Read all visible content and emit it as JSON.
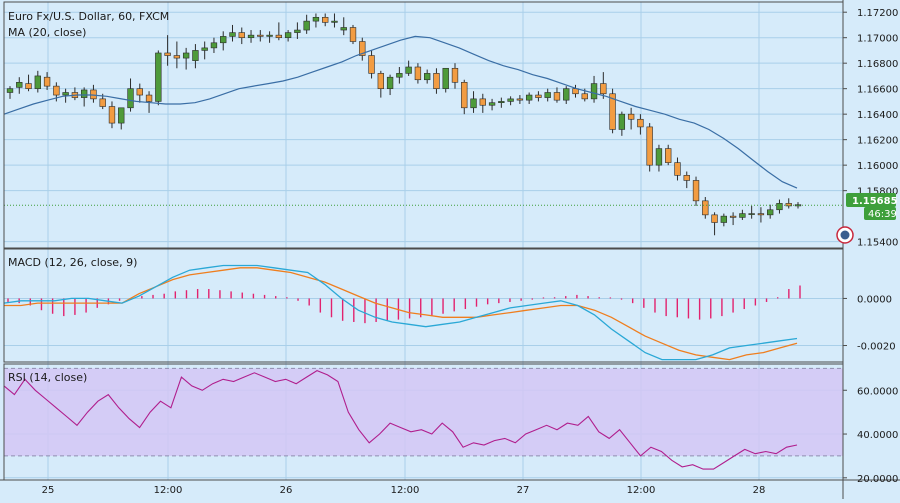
{
  "title": "Euro Fx/U.S. Dollar, 60, FXCM",
  "colors": {
    "background": "#d6ebfa",
    "grid": "#a9cfe9",
    "border": "#4c4c4c",
    "bull": "#4e9a3a",
    "bear": "#f29c42",
    "ma": "#3a6ea5",
    "macd": "#2aa8d6",
    "signal": "#ef7e1e",
    "hist": "#e2226e",
    "rsi": "#b01e8d",
    "rsi_band": "#d4c7f5",
    "last_price_bg": "#3e9f3b",
    "price_line": "#3e9f3b"
  },
  "chart_data": [
    {
      "type": "candlestick",
      "title": "Euro Fx/U.S. Dollar, 60, FXCM",
      "indicator_label": "MA (20, close)",
      "ylim": [
        1.1535,
        1.1728
      ],
      "yticks": [
        "1.17200",
        "1.17000",
        "1.16800",
        "1.16600",
        "1.16400",
        "1.16200",
        "1.16000",
        "1.15800",
        "1.15400"
      ],
      "last_price": "1.15685",
      "countdown": "46:39",
      "x_labels": [
        "25",
        "12:00",
        "26",
        "12:00",
        "27",
        "12:00",
        "28"
      ],
      "candles": [
        [
          1.1657,
          1.1662,
          1.1652,
          1.166
        ],
        [
          1.1661,
          1.1669,
          1.1656,
          1.1665
        ],
        [
          1.1664,
          1.1671,
          1.1658,
          1.166
        ],
        [
          1.166,
          1.1674,
          1.1657,
          1.167
        ],
        [
          1.1669,
          1.1673,
          1.1659,
          1.1662
        ],
        [
          1.1662,
          1.1665,
          1.165,
          1.1655
        ],
        [
          1.1655,
          1.166,
          1.1649,
          1.1657
        ],
        [
          1.1657,
          1.1661,
          1.1651,
          1.1653
        ],
        [
          1.1653,
          1.1661,
          1.1646,
          1.1659
        ],
        [
          1.1659,
          1.1663,
          1.1649,
          1.1652
        ],
        [
          1.1652,
          1.1656,
          1.1644,
          1.1646
        ],
        [
          1.1646,
          1.165,
          1.1629,
          1.1633
        ],
        [
          1.1633,
          1.1645,
          1.1628,
          1.1645
        ],
        [
          1.1645,
          1.1668,
          1.1642,
          1.166
        ],
        [
          1.166,
          1.1664,
          1.1649,
          1.1655
        ],
        [
          1.1655,
          1.1658,
          1.1641,
          1.165
        ],
        [
          1.165,
          1.169,
          1.1647,
          1.1688
        ],
        [
          1.1688,
          1.1702,
          1.1678,
          1.1686
        ],
        [
          1.1686,
          1.1697,
          1.1676,
          1.1684
        ],
        [
          1.1684,
          1.1692,
          1.1675,
          1.1688
        ],
        [
          1.1682,
          1.1695,
          1.1676,
          1.169
        ],
        [
          1.169,
          1.1697,
          1.1683,
          1.1692
        ],
        [
          1.1692,
          1.17,
          1.1688,
          1.1696
        ],
        [
          1.1696,
          1.1705,
          1.169,
          1.1701
        ],
        [
          1.1701,
          1.171,
          1.1697,
          1.1704
        ],
        [
          1.1704,
          1.1708,
          1.1695,
          1.17
        ],
        [
          1.17,
          1.1706,
          1.1696,
          1.1702
        ],
        [
          1.1702,
          1.1706,
          1.1697,
          1.1701
        ],
        [
          1.1701,
          1.1705,
          1.1696,
          1.1702
        ],
        [
          1.1702,
          1.1712,
          1.1698,
          1.17
        ],
        [
          1.17,
          1.1706,
          1.1697,
          1.1704
        ],
        [
          1.1704,
          1.1712,
          1.1699,
          1.1706
        ],
        [
          1.1706,
          1.1718,
          1.1703,
          1.1713
        ],
        [
          1.1713,
          1.1719,
          1.1708,
          1.1716
        ],
        [
          1.1716,
          1.1719,
          1.1709,
          1.1712
        ],
        [
          1.1712,
          1.1719,
          1.1708,
          1.1713
        ],
        [
          1.1706,
          1.1716,
          1.1702,
          1.1708
        ],
        [
          1.1708,
          1.171,
          1.1695,
          1.1697
        ],
        [
          1.1697,
          1.17,
          1.1682,
          1.1686
        ],
        [
          1.1686,
          1.169,
          1.1668,
          1.1672
        ],
        [
          1.1672,
          1.1674,
          1.1653,
          1.166
        ],
        [
          1.166,
          1.1671,
          1.1655,
          1.1669
        ],
        [
          1.1669,
          1.1677,
          1.1664,
          1.1672
        ],
        [
          1.1672,
          1.1682,
          1.167,
          1.1677
        ],
        [
          1.1677,
          1.168,
          1.1664,
          1.1667
        ],
        [
          1.1667,
          1.1675,
          1.1664,
          1.1672
        ],
        [
          1.1672,
          1.1676,
          1.1656,
          1.166
        ],
        [
          1.166,
          1.1676,
          1.1657,
          1.1676
        ],
        [
          1.1676,
          1.168,
          1.166,
          1.1665
        ],
        [
          1.1665,
          1.1667,
          1.164,
          1.1645
        ],
        [
          1.1645,
          1.1658,
          1.1641,
          1.1652
        ],
        [
          1.1652,
          1.1656,
          1.1641,
          1.1647
        ],
        [
          1.1647,
          1.1652,
          1.1643,
          1.1649
        ],
        [
          1.1649,
          1.1653,
          1.1645,
          1.165
        ],
        [
          1.165,
          1.1654,
          1.1647,
          1.1652
        ],
        [
          1.1652,
          1.1655,
          1.1648,
          1.1651
        ],
        [
          1.1651,
          1.1657,
          1.1648,
          1.1655
        ],
        [
          1.1655,
          1.1658,
          1.165,
          1.1653
        ],
        [
          1.1653,
          1.166,
          1.165,
          1.1657
        ],
        [
          1.1657,
          1.1661,
          1.1649,
          1.1651
        ],
        [
          1.1651,
          1.1662,
          1.1648,
          1.166
        ],
        [
          1.166,
          1.1663,
          1.1653,
          1.1656
        ],
        [
          1.1656,
          1.166,
          1.165,
          1.1652
        ],
        [
          1.1652,
          1.167,
          1.1649,
          1.1664
        ],
        [
          1.1664,
          1.1673,
          1.1652,
          1.1656
        ],
        [
          1.1656,
          1.166,
          1.1625,
          1.1628
        ],
        [
          1.1628,
          1.1642,
          1.1623,
          1.164
        ],
        [
          1.164,
          1.1645,
          1.1628,
          1.1636
        ],
        [
          1.1636,
          1.164,
          1.1624,
          1.163
        ],
        [
          1.163,
          1.1633,
          1.1595,
          1.16
        ],
        [
          1.16,
          1.1616,
          1.1595,
          1.1613
        ],
        [
          1.1613,
          1.1616,
          1.16,
          1.1602
        ],
        [
          1.1602,
          1.1606,
          1.1588,
          1.1592
        ],
        [
          1.1592,
          1.1595,
          1.1582,
          1.1588
        ],
        [
          1.1588,
          1.1591,
          1.1568,
          1.1572
        ],
        [
          1.1572,
          1.1575,
          1.1558,
          1.1561
        ],
        [
          1.1561,
          1.1563,
          1.1545,
          1.1555
        ],
        [
          1.1555,
          1.1562,
          1.1552,
          1.156
        ],
        [
          1.156,
          1.1563,
          1.1553,
          1.1559
        ],
        [
          1.1559,
          1.1565,
          1.1557,
          1.1562
        ],
        [
          1.1562,
          1.1568,
          1.1558,
          1.1562
        ],
        [
          1.1562,
          1.1567,
          1.1555,
          1.1561
        ],
        [
          1.1561,
          1.1569,
          1.1558,
          1.1565
        ],
        [
          1.1565,
          1.1573,
          1.1562,
          1.157
        ],
        [
          1.157,
          1.1574,
          1.1566,
          1.1568
        ],
        [
          1.1568,
          1.1571,
          1.1566,
          1.1569
        ]
      ],
      "ma20": [
        1.164,
        1.1644,
        1.1648,
        1.1651,
        1.1654,
        1.1655,
        1.1655,
        1.1654,
        1.1652,
        1.165,
        1.1649,
        1.1648,
        1.1648,
        1.1649,
        1.1652,
        1.1656,
        1.166,
        1.1662,
        1.1664,
        1.1666,
        1.1669,
        1.1673,
        1.1677,
        1.1681,
        1.1686,
        1.169,
        1.1694,
        1.1698,
        1.1701,
        1.17,
        1.1696,
        1.1692,
        1.1687,
        1.1682,
        1.1678,
        1.1675,
        1.1671,
        1.1668,
        1.1664,
        1.166,
        1.1657,
        1.1654,
        1.165,
        1.1646,
        1.1643,
        1.164,
        1.1636,
        1.1633,
        1.1628,
        1.1621,
        1.1613,
        1.1604,
        1.1595,
        1.1587,
        1.1582
      ]
    },
    {
      "type": "line",
      "indicator_label": "MACD (12, 26, close, 9)",
      "ylim": [
        -0.0027,
        0.0021
      ],
      "yticks": [
        "0.0000",
        "-0.0020"
      ],
      "macd": [
        -0.0002,
        -0.0001,
        -0.0001,
        -0.0001,
        0.0,
        0.0,
        -0.0001,
        -0.0002,
        0.0001,
        0.0005,
        0.0009,
        0.0012,
        0.0013,
        0.0014,
        0.0014,
        0.0014,
        0.0013,
        0.0012,
        0.0011,
        0.0006,
        0.0,
        -0.0005,
        -0.0008,
        -0.001,
        -0.0011,
        -0.0012,
        -0.0011,
        -0.001,
        -0.0008,
        -0.0006,
        -0.0004,
        -0.0003,
        -0.0002,
        -0.0001,
        -0.0003,
        -0.0007,
        -0.0013,
        -0.0018,
        -0.0023,
        -0.0026,
        -0.0026,
        -0.0026,
        -0.0024,
        -0.0021,
        -0.002,
        -0.0019,
        -0.0018,
        -0.0017
      ],
      "signal": [
        -0.0003,
        -0.0003,
        -0.0002,
        -0.0002,
        -0.0002,
        -0.0002,
        -0.0002,
        -0.0002,
        0.0002,
        0.0005,
        0.0008,
        0.001,
        0.0011,
        0.0012,
        0.0013,
        0.0013,
        0.0012,
        0.0011,
        0.0009,
        0.0007,
        0.0004,
        0.0001,
        -0.0002,
        -0.0004,
        -0.0006,
        -0.0007,
        -0.0008,
        -0.0008,
        -0.0008,
        -0.0007,
        -0.0006,
        -0.0005,
        -0.0004,
        -0.0003,
        -0.0003,
        -0.0005,
        -0.0008,
        -0.0012,
        -0.0016,
        -0.0019,
        -0.0022,
        -0.0024,
        -0.0025,
        -0.0026,
        -0.0024,
        -0.0023,
        -0.0021,
        -0.0019
      ],
      "histogram": [
        -0.00015,
        -0.0002,
        -0.0003,
        -0.0005,
        -0.00065,
        -0.00075,
        -0.0007,
        -0.0006,
        -0.0004,
        -0.00025,
        -0.0001,
        -5e-05,
        0.0001,
        0.00015,
        0.0002,
        0.0003,
        0.00035,
        0.0004,
        0.0004,
        0.00035,
        0.0003,
        0.00025,
        0.0002,
        0.00015,
        0.0001,
        5e-05,
        -0.0001,
        -0.0003,
        -0.0006,
        -0.0008,
        -0.00095,
        -0.001,
        -0.00105,
        -0.001,
        -0.00095,
        -0.0009,
        -0.00085,
        -0.0008,
        -0.00075,
        -0.00065,
        -0.00055,
        -0.00045,
        -0.00035,
        -0.00025,
        -0.0002,
        -0.00015,
        -0.0001,
        -5e-05,
        0.0,
        5e-05,
        0.0001,
        0.00015,
        0.0001,
        5e-05,
        0.0,
        -5e-05,
        -0.0002,
        -0.0004,
        -0.0006,
        -0.00075,
        -0.0008,
        -0.00085,
        -0.0009,
        -0.00085,
        -0.00075,
        -0.0006,
        -0.00045,
        -0.0003,
        -0.00015,
        5e-05,
        0.0004,
        0.00055
      ]
    },
    {
      "type": "line",
      "indicator_label": "RSI (14, close)",
      "ylim": [
        19,
        72
      ],
      "yticks": [
        "60.0000",
        "40.0000",
        "20.0000"
      ],
      "band": [
        30,
        70
      ],
      "values": [
        62,
        58,
        65,
        60,
        56,
        52,
        48,
        44,
        50,
        55,
        58,
        52,
        47,
        43,
        50,
        55,
        52,
        66,
        62,
        60,
        63,
        65,
        64,
        66,
        68,
        66,
        64,
        65,
        63,
        66,
        69,
        67,
        64,
        50,
        42,
        36,
        40,
        45,
        43,
        41,
        42,
        40,
        45,
        41,
        34,
        36,
        35,
        37,
        38,
        36,
        40,
        42,
        44,
        42,
        45,
        44,
        48,
        41,
        38,
        42,
        36,
        30,
        34,
        32,
        28,
        25,
        26,
        24,
        24,
        27,
        30,
        33,
        31,
        32,
        31,
        34,
        35
      ]
    }
  ]
}
